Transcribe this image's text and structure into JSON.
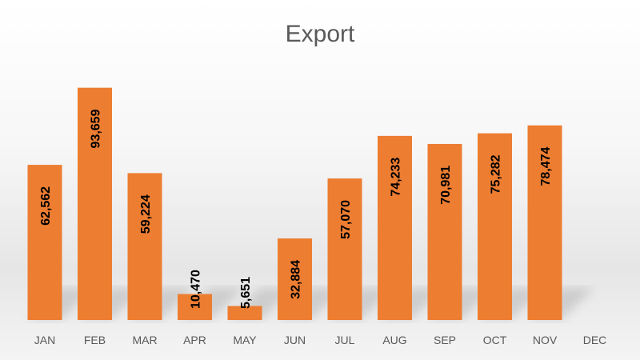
{
  "chart_data": {
    "type": "bar",
    "title": "Export",
    "xlabel": "",
    "ylabel": "",
    "categories": [
      "JAN",
      "FEB",
      "MAR",
      "APR",
      "MAY",
      "JUN",
      "JUL",
      "AUG",
      "SEP",
      "OCT",
      "NOV",
      "DEC"
    ],
    "values": [
      62562,
      93659,
      59224,
      10470,
      5651,
      32884,
      57070,
      74233,
      70981,
      75282,
      78474,
      null
    ],
    "data_labels": [
      "62,562",
      "93,659",
      "59,224",
      "10,470",
      "5,651",
      "32,884",
      "57,070",
      "74,233",
      "70,981",
      "75,282",
      "78,474",
      ""
    ],
    "ylim": [
      0,
      100000
    ],
    "grid": false,
    "legend": "none",
    "bar_color": "#ED7D31",
    "label_color": "#000000",
    "title_color": "#595959",
    "tick_color": "#595959"
  }
}
